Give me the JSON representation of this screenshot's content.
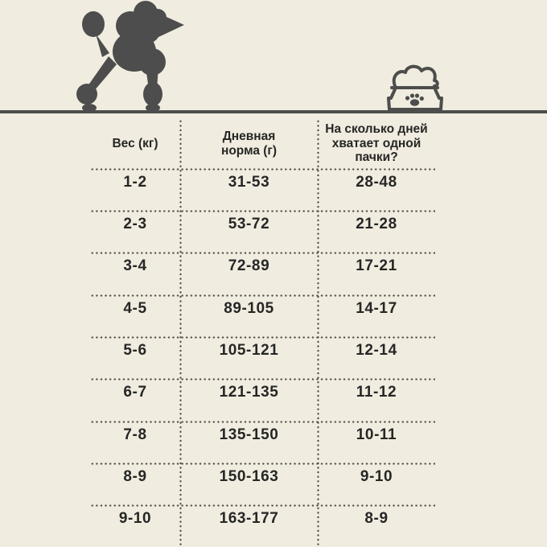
{
  "colors": {
    "background": "#f0ecdf",
    "text": "#262626",
    "graphic": "#4d4d4d",
    "dots": "#4e4a45"
  },
  "icons": {
    "dog": "poodle-silhouette",
    "bowl": "dog-food-bowl-with-paw-print"
  },
  "chart_data": {
    "type": "table",
    "columns": [
      "Вес (кг)",
      "Дневная норма (г)",
      "На сколько дней хватает одной пачки?"
    ],
    "rows": [
      [
        "1-2",
        "31-53",
        "28-48"
      ],
      [
        "2-3",
        "53-72",
        "21-28"
      ],
      [
        "3-4",
        "72-89",
        "17-21"
      ],
      [
        "4-5",
        "89-105",
        "14-17"
      ],
      [
        "5-6",
        "105-121",
        "12-14"
      ],
      [
        "6-7",
        "121-135",
        "11-12"
      ],
      [
        "7-8",
        "135-150",
        "10-11"
      ],
      [
        "8-9",
        "150-163",
        "9-10"
      ],
      [
        "9-10",
        "163-177",
        "8-9"
      ]
    ]
  }
}
